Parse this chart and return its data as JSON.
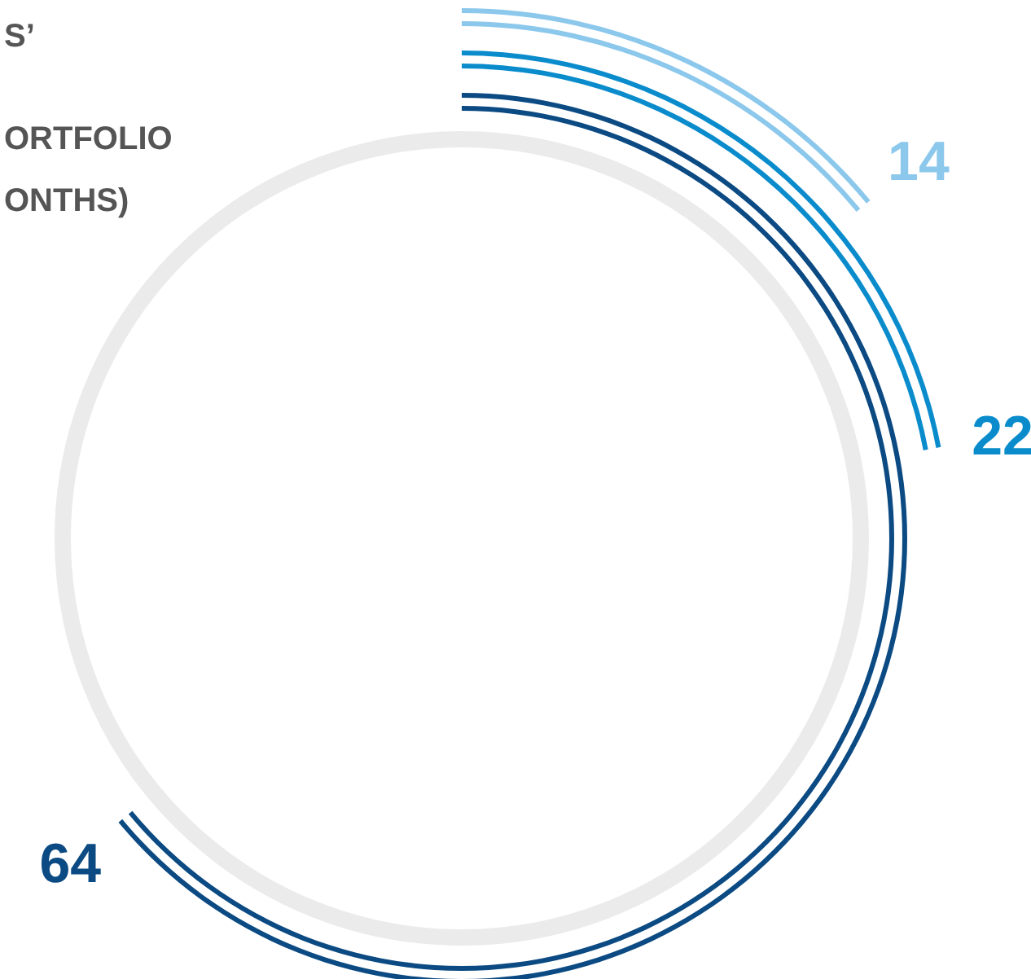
{
  "chart_data": {
    "type": "other",
    "annotations": [
      "S’",
      "ORTFOLIO",
      "ONTHS)"
    ],
    "categories": [
      null,
      null,
      null
    ],
    "values": [
      14,
      22,
      64
    ],
    "colors": [
      "#8cc8ec",
      "#0a8ccc",
      "#0b4a82"
    ],
    "data_labels": true
  }
}
